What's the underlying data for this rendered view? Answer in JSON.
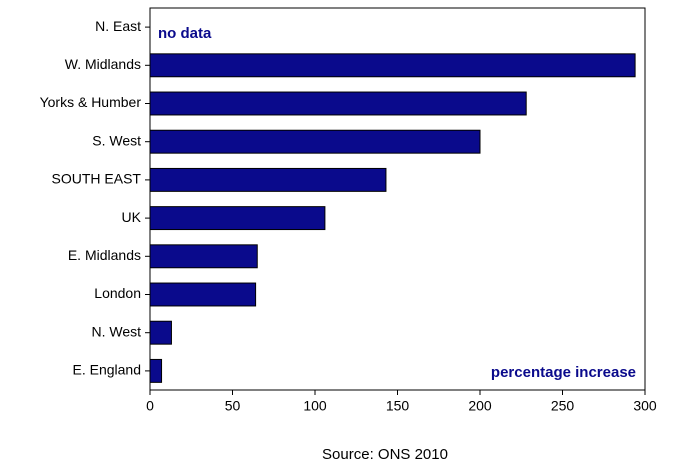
{
  "chart_data": {
    "type": "barh",
    "categories": [
      "N. East",
      "W. Midlands",
      "Yorks & Humber",
      "S. West",
      "SOUTH EAST",
      "UK",
      "E. Midlands",
      "London",
      "N. West",
      "E. England"
    ],
    "values": [
      null,
      294,
      228,
      200,
      143,
      106,
      65,
      64,
      13,
      7
    ],
    "color": "#0a0a8c",
    "xlim": [
      0,
      300
    ],
    "xticks": [
      0,
      50,
      100,
      150,
      200,
      250,
      300
    ],
    "grid": false,
    "annotations": [
      "no data",
      "percentage increase"
    ],
    "source": "Source: ONS 2010"
  }
}
